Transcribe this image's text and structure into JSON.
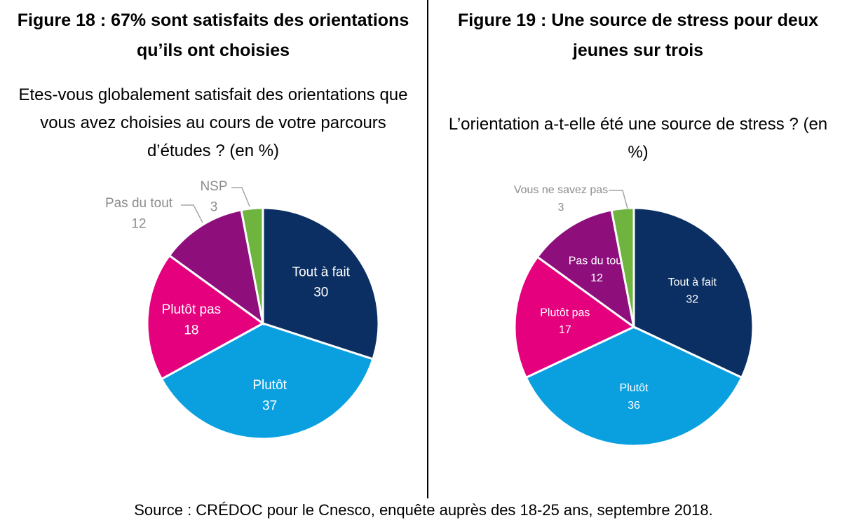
{
  "source": "Source : CRÉDOC pour le Cnesco, enquête auprès des 18-25 ans, septembre 2018.",
  "chart_data": [
    {
      "type": "pie",
      "title": "Figure 18 : 67% sont satisfaits des orientations qu’ils ont choisies",
      "subtitle": "Etes-vous globalement satisfait des orientations que vous avez choisies au cours de votre parcours d’études ? (en %)",
      "categories": [
        "Tout à fait",
        "Plutôt",
        "Plutôt pas",
        "Pas du tout",
        "NSP"
      ],
      "values": [
        30,
        37,
        18,
        12,
        3
      ],
      "colors": [
        "#0b2f63",
        "#0aa0e0",
        "#e5007d",
        "#8e0f7c",
        "#6eb43f"
      ]
    },
    {
      "type": "pie",
      "title": "Figure 19 : Une source de stress pour deux jeunes sur trois",
      "subtitle": "L’orientation a-t-elle été une source de stress ? (en %)",
      "categories": [
        "Tout à fait",
        "Plutôt",
        "Plutôt pas",
        "Pas du tout",
        "Vous ne savez pas"
      ],
      "values": [
        32,
        36,
        17,
        12,
        3
      ],
      "colors": [
        "#0b2f63",
        "#0aa0e0",
        "#e5007d",
        "#8e0f7c",
        "#6eb43f"
      ]
    }
  ]
}
